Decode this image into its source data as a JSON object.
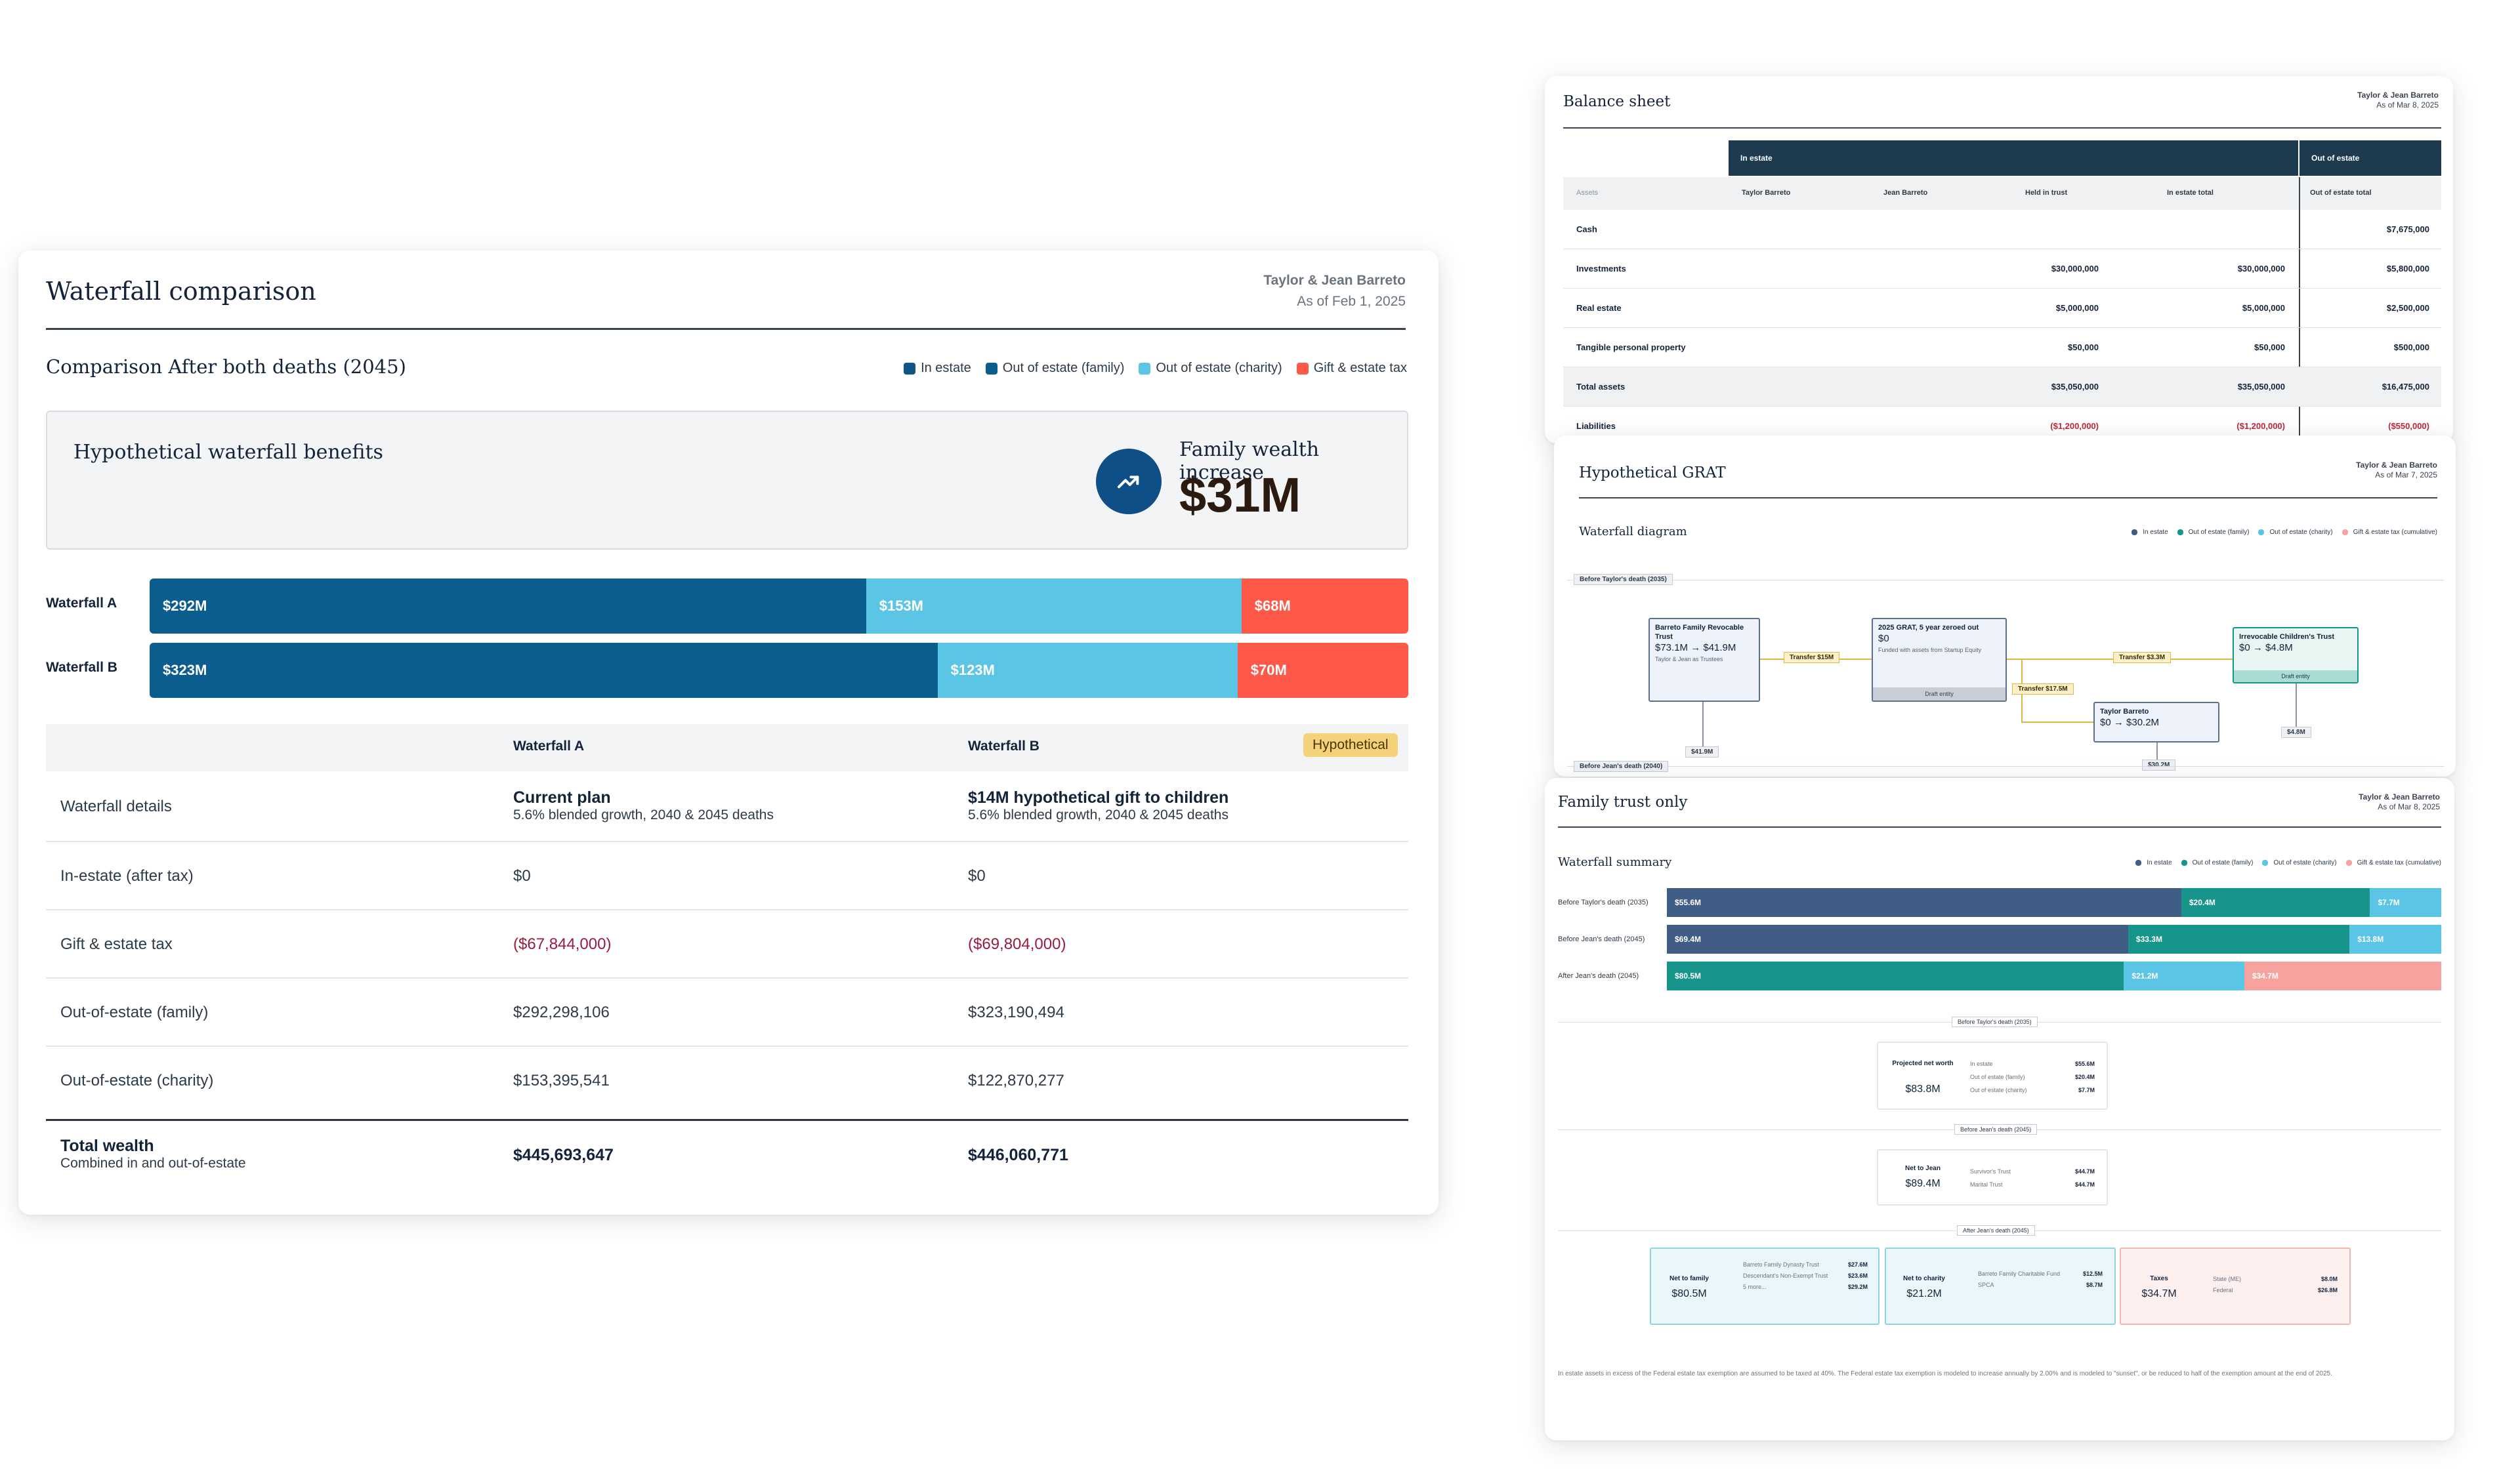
{
  "colors": {
    "in_estate": "#0f5587",
    "out_family": "#0b5d8e",
    "out_charity": "#5bc5e6",
    "tax": "#fd5848",
    "navy": "#1e3a4f",
    "teal": "#17958b",
    "slate": "#405d85",
    "pink": "#f6a3a0"
  },
  "main": {
    "title": "Waterfall comparison",
    "owner": "Taylor & Jean Barreto",
    "as_of": "As of Feb 1, 2025",
    "subtitle": "Comparison After both deaths (2045)",
    "legend": [
      "In estate",
      "Out of estate (family)",
      "Out of estate (charity)",
      "Gift & estate tax"
    ],
    "benefit_title": "Hypothetical waterfall benefits",
    "benefit_icon": "trending-up-icon",
    "family_wealth_label": "Family wealth increase",
    "family_wealth_value": "$31M",
    "bars": [
      {
        "label": "Waterfall A",
        "segments": [
          {
            "value": 292,
            "label": "$292M"
          },
          {
            "value": 153,
            "label": "$153M"
          },
          {
            "value": 68,
            "label": "$68M"
          }
        ]
      },
      {
        "label": "Waterfall B",
        "segments": [
          {
            "value": 323,
            "label": "$323M"
          },
          {
            "value": 123,
            "label": "$123M"
          },
          {
            "value": 70,
            "label": "$70M"
          }
        ]
      }
    ],
    "table": {
      "col_a": "Waterfall A",
      "col_b": "Waterfall B",
      "badge": "Hypothetical",
      "details_label": "Waterfall details",
      "a_plan": "Current plan",
      "a_plan_sub": "5.6% blended growth, 2040 & 2045 deaths",
      "b_plan": "$14M hypothetical gift to children",
      "b_plan_sub": "5.6% blended growth, 2040 & 2045 deaths",
      "rows": [
        {
          "label": "In-estate (after tax)",
          "a": "$0",
          "b": "$0",
          "neg": false
        },
        {
          "label": "Gift & estate tax",
          "a": "($67,844,000)",
          "b": "($69,804,000)",
          "neg": true
        },
        {
          "label": "Out-of-estate (family)",
          "a": "$292,298,106",
          "b": "$323,190,494",
          "neg": false
        },
        {
          "label": "Out-of-estate (charity)",
          "a": "$153,395,541",
          "b": "$122,870,277",
          "neg": false
        }
      ],
      "total_label": "Total wealth",
      "total_sub": "Combined in and out-of-estate",
      "total_a": "$445,693,647",
      "total_b": "$446,060,771"
    }
  },
  "balance": {
    "title": "Balance sheet",
    "owner": "Taylor & Jean Barreto",
    "as_of": "As of Mar 8, 2025",
    "group_in": "In estate",
    "group_out": "Out of estate",
    "cols": [
      "Assets",
      "Taylor Barreto",
      "Jean Barreto",
      "Held in trust",
      "In estate total",
      "Out of estate total"
    ],
    "rows": [
      {
        "label": "Cash",
        "v": [
          "",
          "",
          "",
          "",
          "$7,675,000"
        ]
      },
      {
        "label": "Investments",
        "v": [
          "",
          "",
          "$30,000,000",
          "$30,000,000",
          "$5,800,000"
        ]
      },
      {
        "label": "Real estate",
        "v": [
          "",
          "",
          "$5,000,000",
          "$5,000,000",
          "$2,500,000"
        ]
      },
      {
        "label": "Tangible personal property",
        "v": [
          "",
          "",
          "$50,000",
          "$50,000",
          "$500,000"
        ]
      },
      {
        "label": "Total assets",
        "v": [
          "",
          "",
          "$35,050,000",
          "$35,050,000",
          "$16,475,000"
        ]
      }
    ],
    "cut_row": {
      "label": "Liabilities",
      "v": [
        "($1,200,000)",
        "($1,200,000)",
        "($550,000)"
      ]
    }
  },
  "grat": {
    "title": "Hypothetical GRAT",
    "owner": "Taylor & Jean Barreto",
    "as_of": "As of Mar 7, 2025",
    "section": "Waterfall diagram",
    "legend": [
      "In estate",
      "Out of estate (family)",
      "Out of estate (charity)",
      "Gift & estate tax (cumulative)"
    ],
    "stage1": "Before Taylor's death (2035)",
    "stage2": "Before Jean's death (2040)",
    "box1_title": "Barreto Family Revocable Trust",
    "box1_value": "$73.1M → $41.9M",
    "box1_sub": "Taylor & Jean as Trustees",
    "box2_title": "2025 GRAT, 5 year zeroed out",
    "box2_value": "$0",
    "box2_sub": "Funded with assets from Startup Equity",
    "box2_footer": "Draft entity",
    "box3_title": "Irrevocable Children's Trust",
    "box3_value": "$0 → $4.8M",
    "box3_footer": "Draft entity",
    "box4_title": "Taylor Barreto",
    "box4_value": "$0 → $30.2M",
    "transfer1": "Transfer  $15M",
    "transfer2": "Transfer  $3.3M",
    "transfer3": "Transfer  $17.5M",
    "tag1": "$41.9M",
    "tag2": "$30.2M",
    "tag3": "$4.8M"
  },
  "family": {
    "title": "Family trust only",
    "owner": "Taylor & Jean Barreto",
    "as_of": "As of Mar 8, 2025",
    "section": "Waterfall summary",
    "legend": [
      "In estate",
      "Out of estate (family)",
      "Out of estate (charity)",
      "Gift & estate tax (cumulative)"
    ],
    "bars": [
      {
        "label": "Before Taylor's death (2035)",
        "segments": [
          {
            "value": 55.6,
            "label": "$55.6M"
          },
          {
            "value": 20.4,
            "label": "$20.4M"
          },
          {
            "value": 7.7,
            "label": "$7.7M"
          }
        ]
      },
      {
        "label": "Before Jean's death (2045)",
        "segments": [
          {
            "value": 69.4,
            "label": "$69.4M"
          },
          {
            "value": 33.3,
            "label": "$33.3M"
          },
          {
            "value": 13.8,
            "label": "$13.8M"
          }
        ]
      },
      {
        "label": "After Jean's death (2045)",
        "segments": [
          {
            "value": 80.5,
            "label": "$80.5M"
          },
          {
            "value": 21.2,
            "label": "$21.2M"
          },
          {
            "value": 34.7,
            "label": "$34.7M"
          }
        ]
      }
    ],
    "div1": "Before Taylor's death (2035)",
    "div2": "Before Jean's death (2045)",
    "div3": "After Jean's death (2045)",
    "proj_label": "Projected net worth",
    "proj_value": "$83.8M",
    "proj_items": [
      [
        "In estate",
        "$55.6M"
      ],
      [
        "Out of estate (family)",
        "$20.4M"
      ],
      [
        "Out of estate (charity)",
        "$7.7M"
      ]
    ],
    "jean_label": "Net to Jean",
    "jean_value": "$89.4M",
    "jean_items": [
      [
        "Survivor's Trust",
        "$44.7M"
      ],
      [
        "Marital Trust",
        "$44.7M"
      ]
    ],
    "fam_label": "Net to family",
    "fam_value": "$80.5M",
    "fam_items": [
      [
        "Barreto Family Dynasty Trust",
        "$27.6M"
      ],
      [
        "Descendant's Non-Exempt Trust",
        "$23.6M"
      ],
      [
        "5 more...",
        "$29.2M"
      ]
    ],
    "char_label": "Net to charity",
    "char_value": "$21.2M",
    "char_items": [
      [
        "Barreto Family Charitable Fund",
        "$12.5M"
      ],
      [
        "SPCA",
        "$8.7M"
      ]
    ],
    "tax_label": "Taxes",
    "tax_value": "$34.7M",
    "tax_items": [
      [
        "State (ME)",
        "$8.0M"
      ],
      [
        "Federal",
        "$26.8M"
      ]
    ],
    "footnote": "In estate assets in excess of the Federal estate tax exemption are assumed to be taxed at 40%. The Federal estate tax exemption is modeled to increase annually by 2.00% and is modeled to \"sunset\", or be reduced to half of the exemption amount at the end of 2025."
  }
}
